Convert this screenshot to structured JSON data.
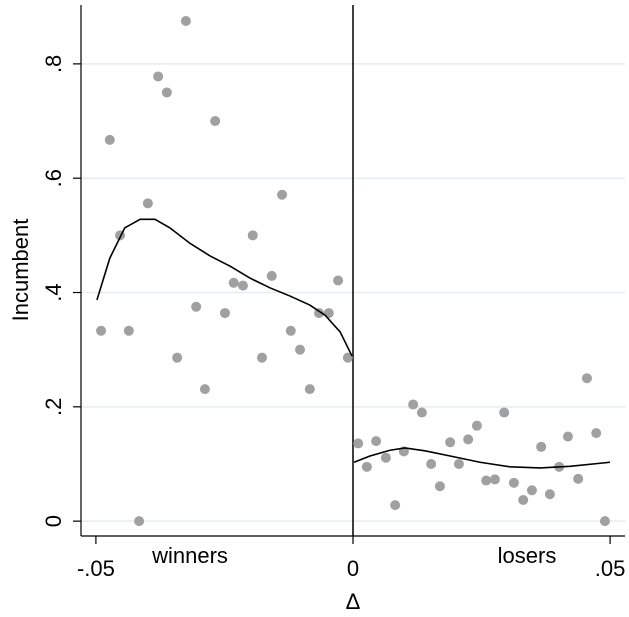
{
  "chart_data": {
    "type": "scatter",
    "xlabel": "Δ",
    "ylabel": "Incumbent",
    "annotations": [
      "winners",
      "losers"
    ],
    "xlim": [
      -0.0529,
      0.0529
    ],
    "ylim": [
      -0.026,
      0.903
    ],
    "xticks": [
      {
        "value": -0.05,
        "label": "-.05"
      },
      0,
      {
        "value": 0.05,
        "label": ".05"
      }
    ],
    "yticks": [
      0,
      {
        "value": 0.2,
        "label": ".2"
      },
      {
        "value": 0.4,
        "label": ".4"
      },
      {
        "value": 0.6,
        "label": ".6"
      },
      {
        "value": 0.8,
        "label": ".8"
      }
    ],
    "xline": 0,
    "grid": true,
    "points": {
      "color": "#a0a0a0",
      "x": [
        -0.049,
        -0.0473,
        -0.0453,
        -0.0436,
        -0.0416,
        -0.0399,
        -0.0379,
        -0.0362,
        -0.0342,
        -0.0325,
        -0.0305,
        -0.0288,
        -0.0268,
        -0.0249,
        -0.0232,
        -0.0214,
        -0.0195,
        -0.0177,
        -0.0158,
        -0.0138,
        -0.0121,
        -0.0103,
        -0.0084,
        -0.0066,
        -0.0047,
        -0.0029,
        -0.001,
        0.001,
        0.0027,
        0.0045,
        0.0064,
        0.0082,
        0.0099,
        0.0117,
        0.0134,
        0.0152,
        0.0169,
        0.0189,
        0.0206,
        0.0224,
        0.0241,
        0.0259,
        0.0276,
        0.0294,
        0.0313,
        0.0331,
        0.0348,
        0.0366,
        0.0383,
        0.0401,
        0.0418,
        0.0438,
        0.0455,
        0.0473,
        0.049
      ],
      "y": [
        0.333,
        0.667,
        0.5,
        0.333,
        0,
        0.556,
        0.778,
        0.75,
        0.286,
        0.875,
        0.375,
        0.231,
        0.7,
        0.364,
        0.417,
        0.412,
        0.5,
        0.286,
        0.429,
        0.571,
        0.333,
        0.3,
        0.231,
        0.364,
        0.364,
        0.421,
        0.286,
        0.136,
        0.095,
        0.14,
        0.111,
        0.028,
        0.122,
        0.204,
        0.19,
        0.1,
        0.061,
        0.138,
        0.1,
        0.143,
        0.167,
        0.071,
        0.073,
        0.19,
        0.067,
        0.037,
        0.054,
        0.13,
        0.047,
        0.095,
        0.148,
        0.074,
        0.25,
        0.154,
        0
      ]
    },
    "fits": [
      {
        "color": "#000000",
        "x": [
          -0.0498,
          -0.0473,
          -0.0444,
          -0.0414,
          -0.0385,
          -0.0356,
          -0.0317,
          -0.0278,
          -0.0239,
          -0.02,
          -0.0161,
          -0.0123,
          -0.0084,
          -0.0054,
          -0.0025,
          -0.0002
        ],
        "y": [
          0.387,
          0.46,
          0.513,
          0.528,
          0.528,
          0.513,
          0.486,
          0.464,
          0.446,
          0.425,
          0.408,
          0.394,
          0.378,
          0.36,
          0.331,
          0.289
        ]
      },
      {
        "color": "#000000",
        "x": [
          0.0002,
          0.0033,
          0.0072,
          0.0101,
          0.014,
          0.0189,
          0.0247,
          0.0305,
          0.0364,
          0.0422,
          0.05
        ],
        "y": [
          0.103,
          0.114,
          0.124,
          0.128,
          0.123,
          0.114,
          0.103,
          0.095,
          0.093,
          0.096,
          0.103
        ]
      }
    ]
  }
}
